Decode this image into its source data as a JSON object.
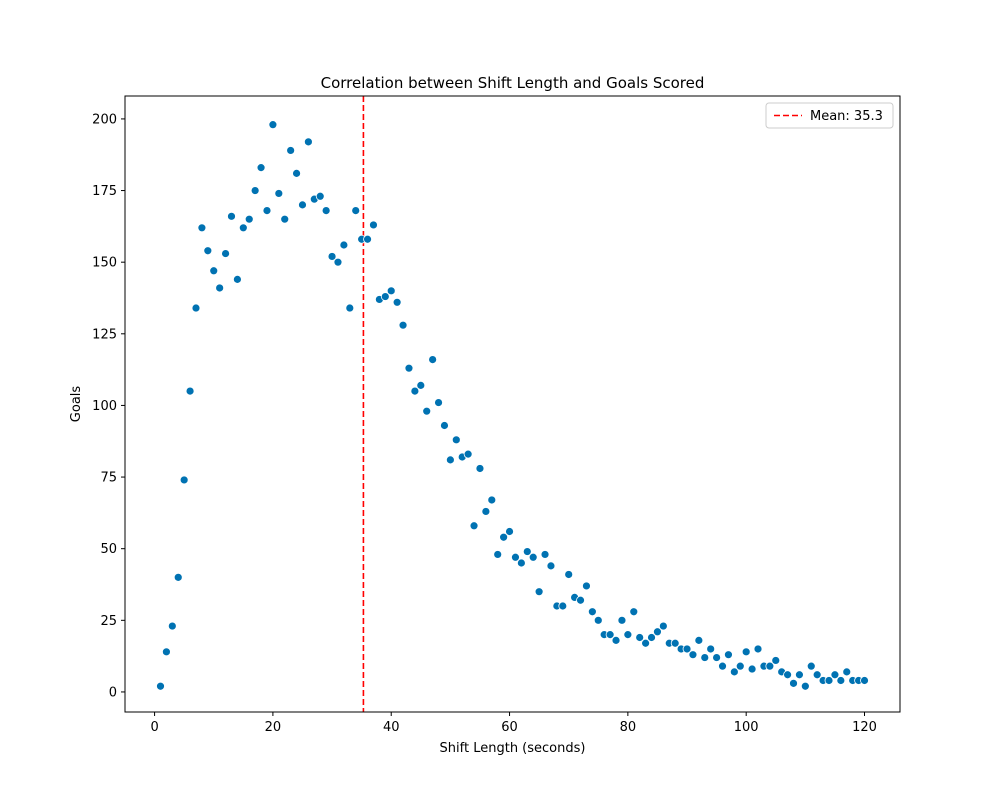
{
  "chart_data": {
    "type": "scatter",
    "title": "Correlation between Shift Length and Goals Scored",
    "xlabel": "Shift Length (seconds)",
    "ylabel": "Goals",
    "xlim": [
      -5,
      126
    ],
    "ylim": [
      -7,
      208
    ],
    "xticks": [
      0,
      20,
      40,
      60,
      80,
      100,
      120
    ],
    "yticks": [
      0,
      25,
      50,
      75,
      100,
      125,
      150,
      175,
      200
    ],
    "grid": false,
    "legend_position": "top-right",
    "point_color": "#0072B2",
    "series": [
      {
        "x": [
          1,
          2,
          3,
          4,
          5,
          6,
          7,
          8,
          9,
          10,
          11,
          12,
          13,
          14,
          15,
          16,
          17,
          18,
          19,
          20,
          21,
          22,
          23,
          24,
          25,
          26,
          27,
          28,
          29,
          30,
          31,
          32,
          33,
          34,
          35,
          36,
          37,
          38,
          39,
          40,
          41,
          42,
          43,
          44,
          45,
          46,
          47,
          48,
          49,
          50,
          51,
          52,
          53,
          54,
          55,
          56,
          57,
          58,
          59,
          60,
          61,
          62,
          63,
          64,
          65,
          66,
          67,
          68,
          69,
          70,
          71,
          72,
          73,
          74,
          75,
          76,
          77,
          78,
          79,
          80,
          81,
          82,
          83,
          84,
          85,
          86,
          87,
          88,
          89,
          90,
          91,
          92,
          93,
          94,
          95,
          96,
          97,
          98,
          99,
          100,
          101,
          102,
          103,
          104,
          105,
          106,
          107,
          108,
          109,
          110,
          111,
          112,
          113,
          114,
          115,
          116,
          117,
          118,
          119,
          120
        ],
        "y": [
          2,
          14,
          23,
          40,
          74,
          105,
          134,
          162,
          154,
          147,
          141,
          153,
          166,
          144,
          162,
          165,
          175,
          183,
          168,
          198,
          174,
          165,
          189,
          181,
          170,
          192,
          172,
          173,
          168,
          152,
          150,
          156,
          134,
          168,
          158,
          158,
          163,
          137,
          138,
          140,
          136,
          128,
          113,
          105,
          107,
          98,
          116,
          101,
          93,
          81,
          88,
          82,
          83,
          58,
          78,
          63,
          67,
          48,
          54,
          56,
          47,
          45,
          49,
          47,
          35,
          48,
          44,
          30,
          30,
          41,
          33,
          32,
          37,
          28,
          25,
          20,
          20,
          18,
          25,
          20,
          28,
          19,
          17,
          19,
          21,
          23,
          17,
          17,
          15,
          15,
          13,
          18,
          12,
          15,
          12,
          9,
          13,
          7,
          9,
          14,
          8,
          15,
          9,
          9,
          11,
          7,
          6,
          3,
          6,
          2,
          9,
          6,
          4,
          4,
          6,
          4,
          7,
          4,
          4,
          4
        ]
      }
    ],
    "annotations": [
      {
        "type": "vline",
        "x": 35.3,
        "color": "#ff0000",
        "style": "dashed",
        "label": "Mean: 35.3"
      }
    ]
  }
}
